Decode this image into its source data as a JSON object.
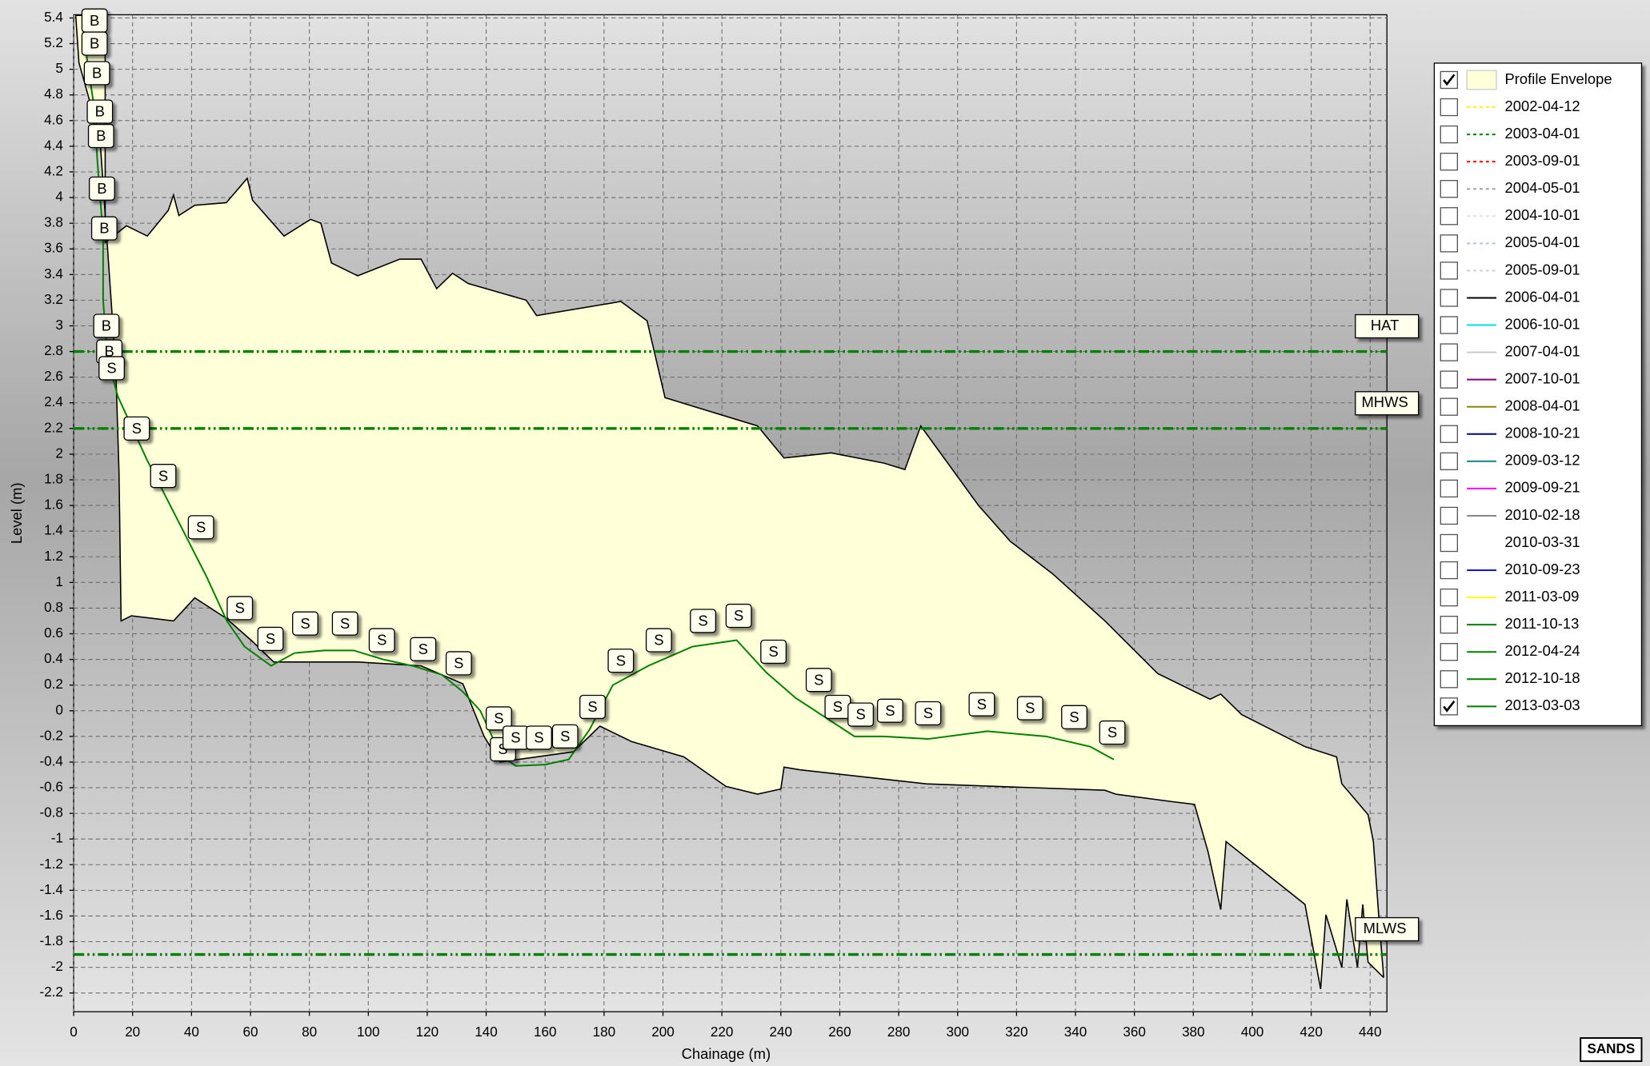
{
  "chart_data": {
    "type": "line",
    "x_label": "Chainage (m)",
    "y_label": "Level (m)",
    "logo": "SANDS",
    "xlim": [
      0,
      445.7
    ],
    "ylim": [
      -2.346,
      5.425
    ],
    "xticks": [
      0,
      20,
      40,
      60,
      80,
      100,
      120,
      140,
      160,
      180,
      200,
      220,
      240,
      260,
      280,
      300,
      320,
      340,
      360,
      380,
      400,
      420,
      440
    ],
    "yticks": [
      -2.2,
      -2,
      -1.8,
      -1.6,
      -1.4,
      -1.2,
      -1,
      -0.8,
      -0.6,
      -0.4,
      -0.2,
      0,
      0.2,
      0.4,
      0.6,
      0.8,
      1,
      1.2,
      1.4,
      1.6,
      1.8,
      2,
      2.2,
      2.4,
      2.6,
      2.8,
      3,
      3.2,
      3.4,
      3.6,
      3.8,
      4,
      4.2,
      4.4,
      4.6,
      4.8,
      5,
      5.2,
      5.4
    ],
    "grid": true,
    "legend": "right",
    "reference_lines": [
      {
        "label": "HAT",
        "value": 2.8,
        "color": "#008000"
      },
      {
        "label": "MHWS",
        "value": 2.2,
        "color": "#008000"
      },
      {
        "label": "MLWS",
        "value": -1.9,
        "color": "#008000"
      }
    ],
    "envelope": {
      "name": "Profile Envelope",
      "color": "#ffffd8",
      "checked": true,
      "upper": {
        "x": [
          0.7,
          10.7,
          10.7,
          17.9,
          25.0,
          32.1,
          33.9,
          35.7,
          41.1,
          51.8,
          58.9,
          60.7,
          71.4,
          80.4,
          83.9,
          87.5,
          96.4,
          110.7,
          117.9,
          123.2,
          128.6,
          133.9,
          153.6,
          157.1,
          185.7,
          194.6,
          200.7,
          232.1,
          241.1,
          257.1,
          275.0,
          282.1,
          287.5,
          307.1,
          317.9,
          332.1,
          350.0,
          367.9,
          385.7,
          389.3,
          396.4,
          417.9,
          428.6,
          430.4,
          439.3,
          441.1,
          442.9,
          444.6
        ],
        "y": [
          5.42,
          5.42,
          3.65,
          3.78,
          3.7,
          3.9,
          4.02,
          3.86,
          3.94,
          3.96,
          4.15,
          3.98,
          3.7,
          3.83,
          3.8,
          3.49,
          3.39,
          3.52,
          3.52,
          3.29,
          3.41,
          3.33,
          3.2,
          3.08,
          3.19,
          3.04,
          2.44,
          2.22,
          1.97,
          2.01,
          1.93,
          1.88,
          2.22,
          1.6,
          1.32,
          1.07,
          0.7,
          0.29,
          0.09,
          0.13,
          -0.03,
          -0.28,
          -0.36,
          -0.57,
          -0.81,
          -1.02,
          -1.59,
          -2.08
        ]
      },
      "lower": {
        "x": [
          0.7,
          1.8,
          8.9,
          14.3,
          15.4,
          16.1,
          19.6,
          33.9,
          41.1,
          51.8,
          60.7,
          67.9,
          96.4,
          117.9,
          132.1,
          139.3,
          144.6,
          169.6,
          178.6,
          189.3,
          207.1,
          221.4,
          232.1,
          240.0,
          241.1,
          246.4,
          289.3,
          350.0,
          353.6,
          373.2,
          380.4,
          385.0,
          389.3,
          391.1,
          417.9,
          423.2,
          425.0,
          430.4,
          432.1,
          435.7,
          437.5,
          439.3,
          444.6
        ],
        "y": [
          5.42,
          5.05,
          4.47,
          2.67,
          1.85,
          0.7,
          0.74,
          0.7,
          0.88,
          0.72,
          0.54,
          0.38,
          0.38,
          0.35,
          0.21,
          -0.2,
          -0.4,
          -0.32,
          -0.12,
          -0.24,
          -0.36,
          -0.59,
          -0.65,
          -0.61,
          -0.44,
          -0.46,
          -0.57,
          -0.62,
          -0.65,
          -0.71,
          -0.73,
          -1.1,
          -1.55,
          -1.02,
          -1.51,
          -2.17,
          -1.59,
          -2.0,
          -1.47,
          -2.0,
          -1.51,
          -1.96,
          -2.08
        ]
      }
    },
    "series": [
      {
        "name": "2002-04-12",
        "color": "#ffff00",
        "dash": true,
        "checked": false
      },
      {
        "name": "2003-04-01",
        "color": "#008000",
        "dash": true,
        "checked": false
      },
      {
        "name": "2003-09-01",
        "color": "#ff0000",
        "dash": true,
        "checked": false
      },
      {
        "name": "2004-05-01",
        "color": "#a0a0a0",
        "dash": true,
        "checked": false
      },
      {
        "name": "2004-10-01",
        "color": "#e0e0e0",
        "dash": true,
        "checked": false
      },
      {
        "name": "2005-04-01",
        "color": "#b0c4de",
        "dash": true,
        "checked": false
      },
      {
        "name": "2005-09-01",
        "color": "#d0d0d0",
        "dash": true,
        "checked": false
      },
      {
        "name": "2006-04-01",
        "color": "#000000",
        "dash": false,
        "checked": false
      },
      {
        "name": "2006-10-01",
        "color": "#00e0e0",
        "dash": false,
        "checked": false
      },
      {
        "name": "2007-04-01",
        "color": "#c8c8c8",
        "dash": false,
        "checked": false
      },
      {
        "name": "2007-10-01",
        "color": "#800080",
        "dash": false,
        "checked": false
      },
      {
        "name": "2008-04-01",
        "color": "#808000",
        "dash": false,
        "checked": false
      },
      {
        "name": "2008-10-21",
        "color": "#000080",
        "dash": false,
        "checked": false
      },
      {
        "name": "2009-03-12",
        "color": "#008080",
        "dash": false,
        "checked": false
      },
      {
        "name": "2009-09-21",
        "color": "#ff00ff",
        "dash": false,
        "checked": false
      },
      {
        "name": "2010-02-18",
        "color": "#808080",
        "dash": false,
        "checked": false
      },
      {
        "name": "2010-03-31",
        "color": "#ffffff",
        "dash": false,
        "checked": false
      },
      {
        "name": "2010-09-23",
        "color": "#0000ff",
        "dash": false,
        "checked": false
      },
      {
        "name": "2011-03-09",
        "color": "#ffff00",
        "dash": false,
        "checked": false
      },
      {
        "name": "2011-10-13",
        "color": "#008000",
        "dash": false,
        "checked": false
      },
      {
        "name": "2012-04-24",
        "color": "#008000",
        "dash": false,
        "checked": false
      },
      {
        "name": "2012-10-18",
        "color": "#008000",
        "dash": false,
        "checked": false
      },
      {
        "name": "2013-03-03",
        "color": "#008000",
        "dash": false,
        "checked": true,
        "x": [
          3,
          5,
          7,
          8,
          9,
          10,
          10,
          11,
          12,
          15,
          25,
          35,
          45,
          52,
          58,
          67,
          75,
          85,
          95,
          105,
          115,
          125,
          132,
          138,
          145,
          150,
          160,
          168,
          175,
          183,
          195,
          210,
          225,
          235,
          245,
          255,
          265,
          275,
          290,
          310,
          330,
          345,
          353
        ],
        "values": [
          5.35,
          5.0,
          4.7,
          4.3,
          4.0,
          3.7,
          3.2,
          2.9,
          2.7,
          2.45,
          1.95,
          1.5,
          1.05,
          0.7,
          0.5,
          0.35,
          0.45,
          0.47,
          0.47,
          0.4,
          0.35,
          0.28,
          0.15,
          0.0,
          -0.35,
          -0.43,
          -0.42,
          -0.38,
          -0.15,
          0.2,
          0.35,
          0.5,
          0.55,
          0.3,
          0.1,
          -0.05,
          -0.2,
          -0.2,
          -0.22,
          -0.16,
          -0.2,
          -0.28,
          -0.38
        ]
      }
    ],
    "markers": [
      {
        "label": "B",
        "x": 7.1,
        "y": 5.38
      },
      {
        "label": "B",
        "x": 7.1,
        "y": 5.2
      },
      {
        "label": "B",
        "x": 7.9,
        "y": 4.97
      },
      {
        "label": "B",
        "x": 8.9,
        "y": 4.67
      },
      {
        "label": "B",
        "x": 9.3,
        "y": 4.48
      },
      {
        "label": "B",
        "x": 9.6,
        "y": 4.07
      },
      {
        "label": "B",
        "x": 10.4,
        "y": 3.76
      },
      {
        "label": "B",
        "x": 11.1,
        "y": 3.0
      },
      {
        "label": "B",
        "x": 12.1,
        "y": 2.8
      },
      {
        "label": "S",
        "x": 12.9,
        "y": 2.67
      },
      {
        "label": "S",
        "x": 21.4,
        "y": 2.2
      },
      {
        "label": "S",
        "x": 30.4,
        "y": 1.83
      },
      {
        "label": "S",
        "x": 43.2,
        "y": 1.43
      },
      {
        "label": "S",
        "x": 56.4,
        "y": 0.8
      },
      {
        "label": "S",
        "x": 66.8,
        "y": 0.56
      },
      {
        "label": "S",
        "x": 78.6,
        "y": 0.68
      },
      {
        "label": "S",
        "x": 92.1,
        "y": 0.68
      },
      {
        "label": "S",
        "x": 104.6,
        "y": 0.55
      },
      {
        "label": "S",
        "x": 118.6,
        "y": 0.48
      },
      {
        "label": "S",
        "x": 130.7,
        "y": 0.37
      },
      {
        "label": "S",
        "x": 144.3,
        "y": -0.06
      },
      {
        "label": "S",
        "x": 145.7,
        "y": -0.3
      },
      {
        "label": "S",
        "x": 150,
        "y": -0.21
      },
      {
        "label": "S",
        "x": 157.9,
        "y": -0.21
      },
      {
        "label": "S",
        "x": 166.8,
        "y": -0.2
      },
      {
        "label": "S",
        "x": 176.1,
        "y": 0.03
      },
      {
        "label": "S",
        "x": 185.7,
        "y": 0.39
      },
      {
        "label": "S",
        "x": 198.6,
        "y": 0.55
      },
      {
        "label": "S",
        "x": 213.6,
        "y": 0.7
      },
      {
        "label": "S",
        "x": 225.7,
        "y": 0.74
      },
      {
        "label": "S",
        "x": 237.5,
        "y": 0.46
      },
      {
        "label": "S",
        "x": 252.9,
        "y": 0.24
      },
      {
        "label": "S",
        "x": 259.3,
        "y": 0.03
      },
      {
        "label": "S",
        "x": 267.1,
        "y": -0.03
      },
      {
        "label": "S",
        "x": 277.1,
        "y": 0.0
      },
      {
        "label": "S",
        "x": 290,
        "y": -0.02
      },
      {
        "label": "S",
        "x": 308.2,
        "y": 0.05
      },
      {
        "label": "S",
        "x": 324.6,
        "y": 0.02
      },
      {
        "label": "S",
        "x": 339.6,
        "y": -0.05
      },
      {
        "label": "S",
        "x": 352.5,
        "y": -0.17
      }
    ]
  }
}
